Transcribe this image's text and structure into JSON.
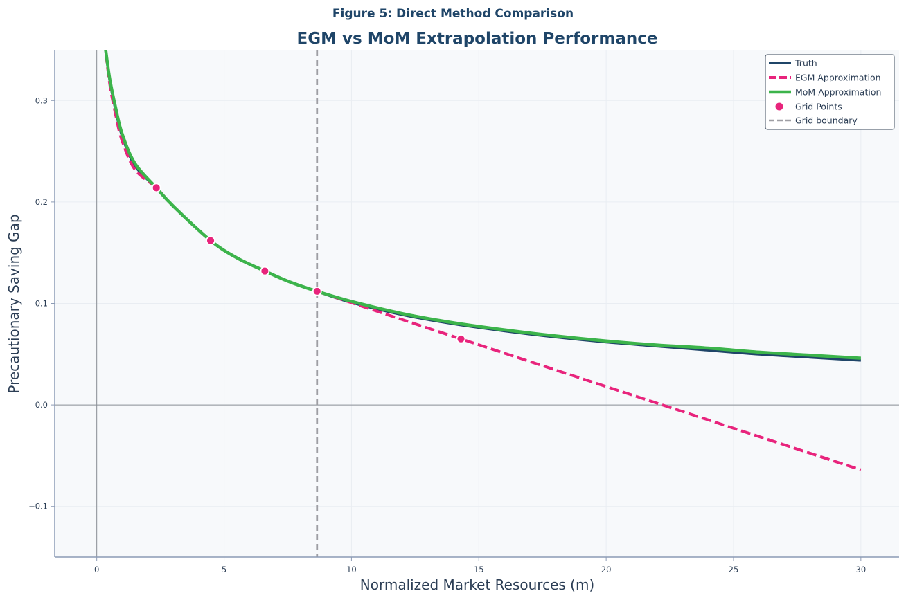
{
  "chart_data": {
    "type": "line",
    "suptitle": "Figure 5: Direct Method Comparison",
    "title": "EGM vs MoM Extrapolation Performance",
    "xlabel": "Normalized Market Resources (m)",
    "ylabel": "Precautionary Saving Gap",
    "xlim": [
      -1.65,
      31.5
    ],
    "ylim": [
      -0.15,
      0.35
    ],
    "xticks": [
      0,
      5,
      10,
      15,
      20,
      25,
      30
    ],
    "xtick_labels": [
      "0",
      "5",
      "10",
      "15",
      "20",
      "25",
      "30"
    ],
    "yticks": [
      -0.1,
      0.0,
      0.1,
      0.2,
      0.3
    ],
    "ytick_labels": [
      "−0.1",
      "0.0",
      "0.1",
      "0.2",
      "0.3"
    ],
    "grid": true,
    "legend_position": "top-right",
    "reference_lines": [
      {
        "orientation": "horizontal",
        "value": 0
      },
      {
        "orientation": "vertical",
        "value": 0
      },
      {
        "orientation": "vertical",
        "value": 8.65,
        "name": "Grid boundary"
      }
    ],
    "series": [
      {
        "name": "Truth",
        "color": "#1f4568",
        "style": "solid",
        "x": [
          0.3,
          0.5,
          0.75,
          1.0,
          1.5,
          2.34,
          3.0,
          4.47,
          5.5,
          6.6,
          7.5,
          8.65,
          10,
          12,
          14,
          16,
          18,
          20,
          22,
          24,
          26,
          28,
          30
        ],
        "y": [
          0.36,
          0.322,
          0.29,
          0.265,
          0.236,
          0.214,
          0.196,
          0.162,
          0.145,
          0.132,
          0.122,
          0.112,
          0.101,
          0.089,
          0.08,
          0.073,
          0.067,
          0.062,
          0.058,
          0.054,
          0.05,
          0.047,
          0.044
        ]
      },
      {
        "name": "EGM Approximation",
        "color": "#e8247c",
        "style": "dashed",
        "x": [
          0.3,
          0.5,
          0.75,
          1.0,
          1.5,
          2.34,
          3.0,
          4.47,
          5.5,
          6.6,
          7.5,
          8.65,
          14.3,
          30
        ],
        "y": [
          0.36,
          0.318,
          0.285,
          0.26,
          0.232,
          0.214,
          0.196,
          0.162,
          0.145,
          0.132,
          0.122,
          0.112,
          0.065,
          -0.064
        ]
      },
      {
        "name": "MoM Approximation",
        "color": "#3cb44b",
        "style": "solid",
        "x": [
          0.3,
          0.5,
          0.75,
          1.0,
          1.5,
          2.34,
          3.0,
          4.47,
          5.5,
          6.6,
          7.5,
          8.65,
          10,
          12,
          14,
          16,
          18,
          20,
          22,
          24,
          26,
          28,
          30
        ],
        "y": [
          0.36,
          0.323,
          0.292,
          0.267,
          0.238,
          0.214,
          0.196,
          0.162,
          0.145,
          0.132,
          0.122,
          0.112,
          0.102,
          0.09,
          0.081,
          0.074,
          0.068,
          0.063,
          0.059,
          0.056,
          0.052,
          0.049,
          0.046
        ]
      }
    ],
    "grid_points": {
      "name": "Grid Points",
      "color": "#e8247c",
      "x": [
        2.34,
        4.47,
        6.6,
        8.65,
        14.3
      ],
      "y": [
        0.214,
        0.162,
        0.132,
        0.112,
        0.065
      ]
    },
    "legend": [
      "Truth",
      "EGM Approximation",
      "MoM Approximation",
      "Grid Points",
      "Grid boundary"
    ]
  }
}
